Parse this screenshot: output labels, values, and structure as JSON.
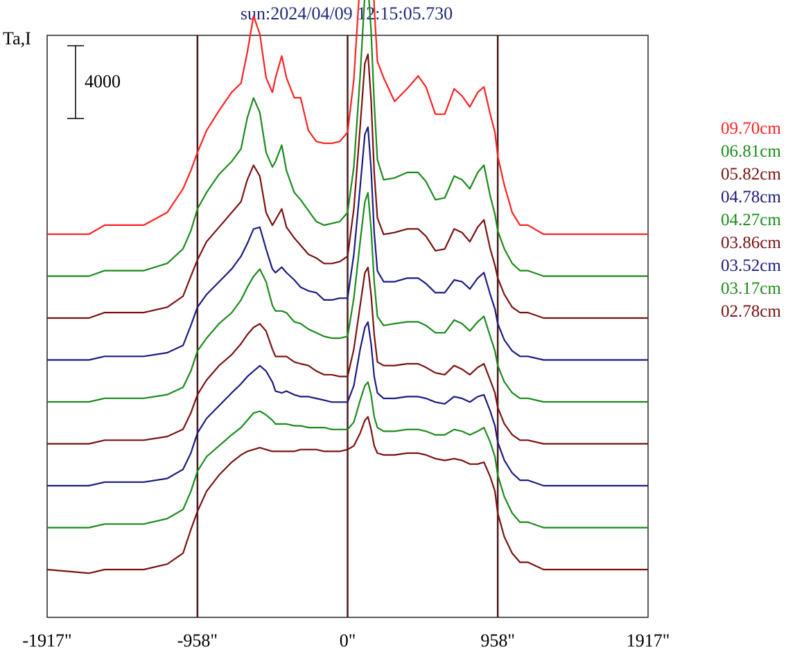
{
  "chart_data": {
    "type": "line",
    "title": "sun:2024/04/09 12:15:05.730",
    "ylabel": "Ta,I",
    "scale_bar_label": "4000",
    "scale_bar_value": 4000,
    "xlim": [
      -1917,
      1917
    ],
    "x_ticks": [
      -1917,
      -958,
      0,
      958,
      1917
    ],
    "x_tick_labels": [
      "-1917\"",
      "-958\"",
      "0\"",
      "958\"",
      "1917\""
    ],
    "vertical_lines": [
      -958,
      0,
      958
    ],
    "grid": false,
    "legend_position": "right",
    "series_offset": 4000,
    "x": [
      -1917,
      -1650,
      -1550,
      -1300,
      -1150,
      -1050,
      -1000,
      -958,
      -900,
      -820,
      -740,
      -680,
      -640,
      -600,
      -560,
      -520,
      -480,
      -460,
      -420,
      -390,
      -340,
      -300,
      -250,
      -200,
      -150,
      -100,
      -50,
      0,
      40,
      80,
      110,
      130,
      150,
      170,
      190,
      230,
      300,
      380,
      450,
      500,
      560,
      620,
      680,
      730,
      780,
      830,
      870,
      910,
      940,
      958,
      1000,
      1050,
      1100,
      1150,
      1250,
      1400,
      1600,
      1917
    ],
    "series": [
      {
        "name": "09.70cm",
        "color": "#ff2020",
        "values": [
          0,
          0,
          500,
          500,
          1200,
          2500,
          3500,
          4500,
          5700,
          6800,
          7800,
          8300,
          10000,
          12000,
          11000,
          8600,
          7800,
          8600,
          9800,
          8600,
          7500,
          7500,
          5700,
          5100,
          5000,
          5000,
          5100,
          5600,
          8500,
          14000,
          19000,
          19500,
          17000,
          12500,
          9500,
          8600,
          7300,
          8000,
          8700,
          8100,
          6600,
          6600,
          8000,
          7600,
          7000,
          7800,
          8100,
          6600,
          5600,
          4300,
          2700,
          1200,
          500,
          500,
          0,
          0,
          0,
          0
        ]
      },
      {
        "name": "06.81cm",
        "color": "#1a8a1a",
        "values": [
          0,
          0,
          300,
          300,
          700,
          1500,
          2500,
          3700,
          4600,
          5600,
          6300,
          7000,
          8700,
          9800,
          9000,
          6800,
          6000,
          6300,
          7200,
          5800,
          4600,
          4200,
          3600,
          3000,
          2800,
          2900,
          3000,
          3500,
          6000,
          11000,
          15500,
          16000,
          13500,
          9500,
          6400,
          5300,
          5400,
          5700,
          5700,
          5200,
          4200,
          4300,
          5500,
          5300,
          4800,
          5700,
          6100,
          4400,
          3400,
          2500,
          1500,
          700,
          300,
          300,
          0,
          0,
          0,
          0
        ]
      },
      {
        "name": "05.82cm",
        "color": "#7a1010",
        "values": [
          0,
          0,
          300,
          300,
          600,
          1200,
          2300,
          3200,
          4200,
          5000,
          5800,
          6400,
          7600,
          8400,
          7800,
          5800,
          5100,
          5400,
          6000,
          5000,
          4400,
          4000,
          3500,
          3300,
          3000,
          3000,
          3100,
          3400,
          6000,
          10500,
          14000,
          14500,
          12000,
          8000,
          5500,
          4600,
          4700,
          4900,
          4900,
          4500,
          3700,
          3800,
          4900,
          4700,
          4200,
          5000,
          5400,
          3800,
          2900,
          2200,
          1300,
          600,
          300,
          300,
          0,
          0,
          0,
          0
        ]
      },
      {
        "name": "04.78cm",
        "color": "#1a1a80",
        "values": [
          0,
          0,
          200,
          200,
          400,
          800,
          1900,
          2900,
          3600,
          4300,
          5000,
          5700,
          6400,
          7200,
          7300,
          6100,
          5000,
          4800,
          5100,
          4800,
          4400,
          4000,
          3800,
          3700,
          3300,
          3300,
          3400,
          3400,
          5800,
          9500,
          12400,
          12800,
          10500,
          7000,
          4900,
          4300,
          4300,
          4500,
          4500,
          4200,
          3700,
          3700,
          4400,
          4300,
          3900,
          4500,
          4800,
          3600,
          2800,
          2000,
          1100,
          500,
          200,
          200,
          0,
          0,
          0,
          0
        ]
      },
      {
        "name": "04.27cm",
        "color": "#1a8a1a",
        "values": [
          0,
          0,
          200,
          200,
          400,
          800,
          1700,
          2800,
          3500,
          4300,
          4900,
          5600,
          6300,
          6900,
          7300,
          6600,
          5300,
          5000,
          5000,
          4900,
          4400,
          4300,
          4000,
          3800,
          3600,
          3500,
          3500,
          3600,
          5700,
          8800,
          11000,
          11500,
          9500,
          6600,
          4700,
          4200,
          4300,
          4400,
          4400,
          4200,
          3800,
          3800,
          4500,
          4300,
          3900,
          4400,
          4700,
          3600,
          2800,
          2000,
          1100,
          500,
          200,
          200,
          0,
          0,
          0,
          0
        ]
      },
      {
        "name": "03.86cm",
        "color": "#7a1010",
        "values": [
          0,
          0,
          200,
          200,
          400,
          800,
          1700,
          2700,
          3500,
          4300,
          4900,
          5500,
          6000,
          6400,
          6600,
          6200,
          5200,
          4800,
          4800,
          4800,
          4500,
          4400,
          4300,
          4000,
          3800,
          3800,
          3700,
          3700,
          5200,
          7600,
          9400,
          9700,
          8200,
          6000,
          4500,
          4300,
          4300,
          4400,
          4400,
          4200,
          3900,
          3800,
          4300,
          4100,
          3800,
          4200,
          4400,
          3500,
          2800,
          2000,
          1100,
          500,
          200,
          200,
          0,
          0,
          0,
          0
        ]
      },
      {
        "name": "03.52cm",
        "color": "#1a1a80",
        "values": [
          0,
          0,
          200,
          200,
          400,
          900,
          1800,
          2900,
          3700,
          4400,
          5100,
          5600,
          6000,
          6300,
          6600,
          6300,
          5700,
          5200,
          5100,
          5200,
          5000,
          4900,
          4900,
          4800,
          4700,
          4600,
          4600,
          4600,
          5500,
          7500,
          8700,
          9000,
          7800,
          6000,
          5100,
          4800,
          4800,
          4900,
          4900,
          4800,
          4600,
          4500,
          4900,
          4800,
          4600,
          4900,
          5000,
          4100,
          3300,
          2400,
          1400,
          700,
          300,
          300,
          0,
          0,
          0,
          0
        ]
      },
      {
        "name": "03.17cm",
        "color": "#1a8a1a",
        "values": [
          0,
          0,
          200,
          200,
          500,
          1000,
          2000,
          3100,
          3900,
          4500,
          5100,
          5500,
          5900,
          6300,
          6400,
          6200,
          5900,
          5700,
          5700,
          5700,
          5600,
          5600,
          5500,
          5500,
          5500,
          5400,
          5400,
          5400,
          5800,
          7000,
          7800,
          8000,
          7300,
          6100,
          5500,
          5300,
          5300,
          5400,
          5400,
          5300,
          5100,
          5100,
          5400,
          5300,
          5100,
          5300,
          5500,
          4700,
          3900,
          2900,
          1700,
          800,
          300,
          300,
          0,
          0,
          0,
          0
        ]
      },
      {
        "name": "02.78cm",
        "color": "#7a1010",
        "values": [
          0,
          -200,
          0,
          0,
          300,
          900,
          2200,
          3200,
          4300,
          5200,
          5900,
          6300,
          6500,
          6600,
          6700,
          6600,
          6500,
          6500,
          6500,
          6500,
          6500,
          6600,
          6600,
          6600,
          6500,
          6500,
          6500,
          6600,
          6800,
          7500,
          8200,
          8400,
          7700,
          6800,
          6400,
          6300,
          6300,
          6400,
          6400,
          6300,
          6100,
          6000,
          6100,
          6000,
          5800,
          5800,
          5900,
          5100,
          4300,
          3100,
          1800,
          900,
          400,
          400,
          0,
          0,
          0,
          0
        ]
      }
    ]
  }
}
